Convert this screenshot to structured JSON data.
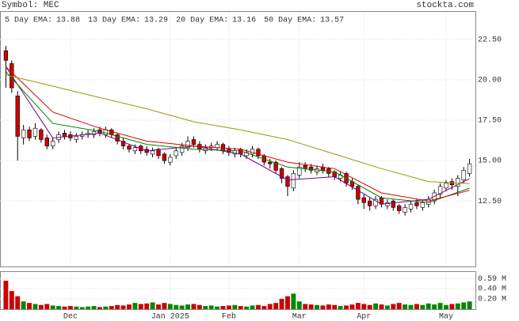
{
  "chart_data": {
    "type": "candlestick",
    "symbol": "Symbol: MEC",
    "site": "stockta.com",
    "xlim": [
      -1,
      80
    ],
    "xticks": [
      {
        "value": 11,
        "label": "Dec"
      },
      {
        "value": 28,
        "label": "Jan 2025"
      },
      {
        "value": 38,
        "label": "Feb"
      },
      {
        "value": 50,
        "label": "Mar"
      },
      {
        "value": 61,
        "label": "Apr"
      },
      {
        "value": 75,
        "label": "May"
      }
    ],
    "ylim": [
      8.4,
      24.2
    ],
    "yticks": [
      {
        "value": 12.5,
        "label": "12.50"
      },
      {
        "value": 15,
        "label": "15.00"
      },
      {
        "value": 17.5,
        "label": "17.50"
      },
      {
        "value": 20,
        "label": "20.00"
      },
      {
        "value": 22.5,
        "label": "22.50"
      }
    ],
    "grid": true,
    "up_color": "#ffffff",
    "down_color": "#cc0000",
    "vol_up_color": "#008800",
    "vol_down_color": "#cc0000",
    "open": [
      21.8,
      21.0,
      19.0,
      16.4,
      16.9,
      16.5,
      16.9,
      16.4,
      15.9,
      16.3,
      16.7,
      16.6,
      16.3,
      16.5,
      16.6,
      16.6,
      16.9,
      16.6,
      16.9,
      16.6,
      16.2,
      15.9,
      15.6,
      15.9,
      15.7,
      15.4,
      15.7,
      15.4,
      14.9,
      15.3,
      15.5,
      15.8,
      16.3,
      16.0,
      15.6,
      15.8,
      15.8,
      16.0,
      15.7,
      15.4,
      15.7,
      15.3,
      15.4,
      15.7,
      15.3,
      14.9,
      14.9,
      14.5,
      14.0,
      13.3,
      14.1,
      14.7,
      14.6,
      14.3,
      14.6,
      14.5,
      14.3,
      13.9,
      14.2,
      13.7,
      13.4,
      12.7,
      12.5,
      12.2,
      12.7,
      12.2,
      12.5,
      12.2,
      11.8,
      12.0,
      12.4,
      12.1,
      12.3,
      12.5,
      12.9,
      13.3,
      13.7,
      13.4,
      13.8,
      14.2
    ],
    "high": [
      22.1,
      21.2,
      19.3,
      17.2,
      17.1,
      17.3,
      17.0,
      16.6,
      16.4,
      16.8,
      16.9,
      16.8,
      16.7,
      16.8,
      16.9,
      17.0,
      17.1,
      17.1,
      17.0,
      16.7,
      16.4,
      16.0,
      16.0,
      16.0,
      15.9,
      15.8,
      15.8,
      15.5,
      15.4,
      15.8,
      16.1,
      16.5,
      16.5,
      16.2,
      16.0,
      16.1,
      16.2,
      16.1,
      15.9,
      15.8,
      15.8,
      15.7,
      15.9,
      15.8,
      15.4,
      15.1,
      15.0,
      14.6,
      14.1,
      14.4,
      14.9,
      14.9,
      14.8,
      14.7,
      14.8,
      14.6,
      14.4,
      14.3,
      14.3,
      13.9,
      13.5,
      12.9,
      12.7,
      12.8,
      12.8,
      12.6,
      12.6,
      12.3,
      12.3,
      12.5,
      12.6,
      12.6,
      12.8,
      13.2,
      13.6,
      13.8,
      13.9,
      14.1,
      14.6,
      15.1
    ],
    "low": [
      19.5,
      19.2,
      15.0,
      16.0,
      16.2,
      16.3,
      16.1,
      15.7,
      15.7,
      16.1,
      16.3,
      16.2,
      16.1,
      16.3,
      16.4,
      16.4,
      16.5,
      16.4,
      16.4,
      16.0,
      15.7,
      15.5,
      15.4,
      15.4,
      15.3,
      15.2,
      15.1,
      14.8,
      14.7,
      15.1,
      15.3,
      15.6,
      15.8,
      15.5,
      15.4,
      15.6,
      15.6,
      15.4,
      15.3,
      15.2,
      15.2,
      15.1,
      15.2,
      15.1,
      14.7,
      14.5,
      14.2,
      13.6,
      12.8,
      13.1,
      13.9,
      14.3,
      14.2,
      14.1,
      14.2,
      14.0,
      13.8,
      13.7,
      13.4,
      13.2,
      12.3,
      12.0,
      11.9,
      12.0,
      12.1,
      12.0,
      11.9,
      11.7,
      11.6,
      11.8,
      12.0,
      11.9,
      12.1,
      12.3,
      12.7,
      13.1,
      13.2,
      12.8,
      13.6,
      14.0
    ],
    "close": [
      21.2,
      19.5,
      16.5,
      16.9,
      16.4,
      17.0,
      16.3,
      15.9,
      16.2,
      16.6,
      16.5,
      16.4,
      16.5,
      16.6,
      16.7,
      16.8,
      16.7,
      16.9,
      16.6,
      16.2,
      15.9,
      15.7,
      15.8,
      15.6,
      15.5,
      15.6,
      15.3,
      15.0,
      15.2,
      15.6,
      15.9,
      16.2,
      16.0,
      15.7,
      15.8,
      15.9,
      16.0,
      15.6,
      15.5,
      15.6,
      15.4,
      15.5,
      15.7,
      15.3,
      14.9,
      14.8,
      14.4,
      13.9,
      13.4,
      14.2,
      14.6,
      14.5,
      14.4,
      14.5,
      14.4,
      14.2,
      14.0,
      14.1,
      13.6,
      13.4,
      12.6,
      12.4,
      12.2,
      12.6,
      12.3,
      12.4,
      12.1,
      11.9,
      12.1,
      12.3,
      12.2,
      12.4,
      12.6,
      13.0,
      13.4,
      13.6,
      13.5,
      13.9,
      14.4,
      14.8
    ],
    "volume": [
      0.55,
      0.35,
      0.25,
      0.15,
      0.12,
      0.1,
      0.08,
      0.1,
      0.07,
      0.06,
      0.05,
      0.06,
      0.05,
      0.04,
      0.05,
      0.06,
      0.04,
      0.05,
      0.06,
      0.08,
      0.07,
      0.09,
      0.12,
      0.1,
      0.11,
      0.13,
      0.09,
      0.12,
      0.1,
      0.08,
      0.07,
      0.09,
      0.1,
      0.08,
      0.06,
      0.07,
      0.05,
      0.06,
      0.07,
      0.08,
      0.06,
      0.05,
      0.07,
      0.08,
      0.06,
      0.1,
      0.12,
      0.2,
      0.25,
      0.3,
      0.15,
      0.1,
      0.09,
      0.08,
      0.07,
      0.09,
      0.08,
      0.06,
      0.07,
      0.09,
      0.12,
      0.1,
      0.08,
      0.11,
      0.09,
      0.07,
      0.1,
      0.12,
      0.09,
      0.08,
      0.1,
      0.08,
      0.11,
      0.09,
      0.12,
      0.08,
      0.1,
      0.11,
      0.13,
      0.15
    ],
    "vlim": [
      0,
      0.72
    ],
    "vticks": [
      {
        "value": 0.2,
        "label": "0.20 M"
      },
      {
        "value": 0.4,
        "label": "0.40 M"
      },
      {
        "value": 0.59,
        "label": "0.59 M"
      }
    ],
    "ema_x": [
      0,
      8,
      16,
      24,
      32,
      40,
      48,
      56,
      64,
      72,
      79
    ],
    "series": [
      {
        "name": "5 Day EMA:",
        "color": "#800080",
        "values": [
          20.8,
          16.4,
          16.7,
          15.6,
          15.9,
          15.4,
          13.8,
          14.0,
          12.3,
          12.6,
          13.88
        ]
      },
      {
        "name": "13 Day EMA:",
        "color": "#008000",
        "values": [
          20.5,
          17.3,
          16.8,
          16.0,
          15.7,
          15.6,
          14.6,
          14.3,
          12.7,
          12.4,
          13.29
        ]
      },
      {
        "name": "20 Day EMA:",
        "color": "#dd0000",
        "values": [
          20.8,
          18.0,
          17.0,
          16.2,
          15.9,
          15.7,
          14.9,
          14.5,
          13.0,
          12.5,
          13.16
        ]
      },
      {
        "name": "50 Day EMA:",
        "color": "#999900",
        "values": [
          20.3,
          19.6,
          18.9,
          18.2,
          17.4,
          16.9,
          16.3,
          15.4,
          14.5,
          13.7,
          13.57
        ]
      }
    ]
  }
}
